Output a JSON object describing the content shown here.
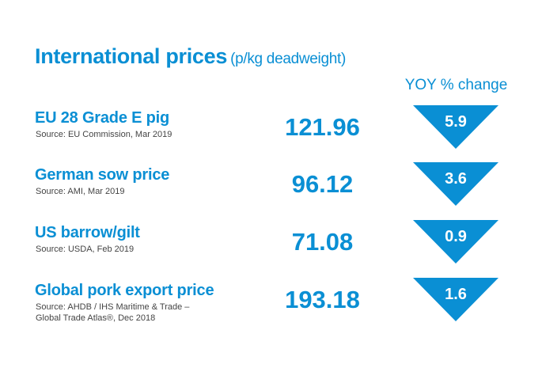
{
  "title": "International prices",
  "unit": "(p/kg deadweight)",
  "yoy_header": "YOY % change",
  "accent_color": "#0a8fd4",
  "rows": [
    {
      "label": "EU 28 Grade E pig",
      "source": "Source: EU Commission, Mar 2019",
      "source2": "",
      "value": "121.96",
      "yoy": "5.9",
      "direction": "down"
    },
    {
      "label": "German sow price",
      "source": "Source:  AMI, Mar 2019",
      "source2": "",
      "value": "96.12",
      "yoy": "3.6",
      "direction": "down"
    },
    {
      "label": "US barrow/gilt",
      "source": "Source: USDA, Feb 2019",
      "source2": "",
      "value": "71.08",
      "yoy": "0.9",
      "direction": "down"
    },
    {
      "label": "Global pork export price",
      "source": "Source: AHDB / IHS Maritime & Trade –",
      "source2": "Global Trade Atlas®, Dec 2018",
      "value": "193.18",
      "yoy": "1.6",
      "direction": "down"
    }
  ]
}
